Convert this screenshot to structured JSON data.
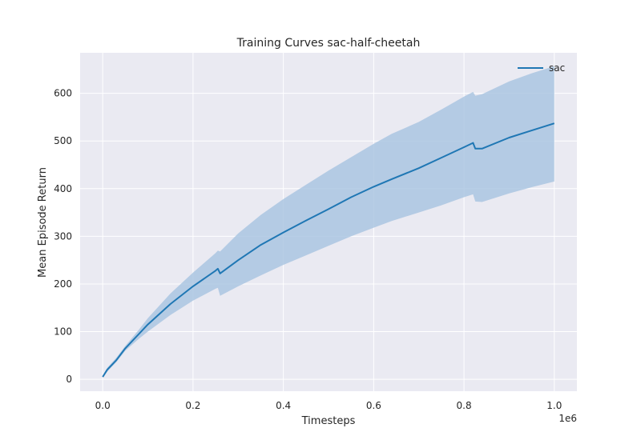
{
  "chart_data": {
    "type": "line",
    "title": "Training Curves sac-half-cheetah",
    "xlabel": "Timesteps",
    "ylabel": "Mean Episode Return",
    "x_offset_label": "1e6",
    "xlim": [
      -0.05,
      1.05
    ],
    "ylim": [
      -25,
      685
    ],
    "x_ticks": [
      0.0,
      0.2,
      0.4,
      0.6,
      0.8,
      1.0
    ],
    "x_tick_labels": [
      "0.0",
      "0.2",
      "0.4",
      "0.6",
      "0.8",
      "1.0"
    ],
    "y_ticks": [
      0,
      100,
      200,
      300,
      400,
      500,
      600
    ],
    "y_tick_labels": [
      "0",
      "100",
      "200",
      "300",
      "400",
      "500",
      "600"
    ],
    "grid": true,
    "background_color": "#eaeaf2",
    "legend": {
      "position": "top-right",
      "entries": [
        "sac"
      ]
    },
    "series": [
      {
        "name": "sac",
        "color": "#1f77b4",
        "band_color": "#a6c3e0",
        "x": [
          0.0,
          0.01,
          0.03,
          0.05,
          0.08,
          0.1,
          0.15,
          0.2,
          0.25,
          0.255,
          0.26,
          0.3,
          0.35,
          0.4,
          0.45,
          0.5,
          0.55,
          0.6,
          0.64,
          0.7,
          0.75,
          0.8,
          0.82,
          0.825,
          0.84,
          0.9,
          0.95,
          1.0
        ],
        "mean": [
          5,
          20,
          40,
          65,
          95,
          115,
          158,
          195,
          228,
          232,
          222,
          250,
          282,
          308,
          333,
          357,
          382,
          404,
          420,
          443,
          465,
          487,
          496,
          484,
          484,
          507,
          522,
          537
        ],
        "lower": [
          3,
          16,
          36,
          60,
          85,
          100,
          135,
          165,
          190,
          192,
          175,
          195,
          218,
          240,
          260,
          280,
          300,
          318,
          332,
          350,
          365,
          382,
          388,
          373,
          372,
          390,
          403,
          415
        ],
        "upper": [
          7,
          24,
          45,
          70,
          104,
          128,
          180,
          224,
          265,
          270,
          268,
          306,
          345,
          378,
          408,
          438,
          466,
          494,
          515,
          540,
          566,
          593,
          603,
          595,
          598,
          625,
          642,
          657
        ]
      }
    ]
  }
}
